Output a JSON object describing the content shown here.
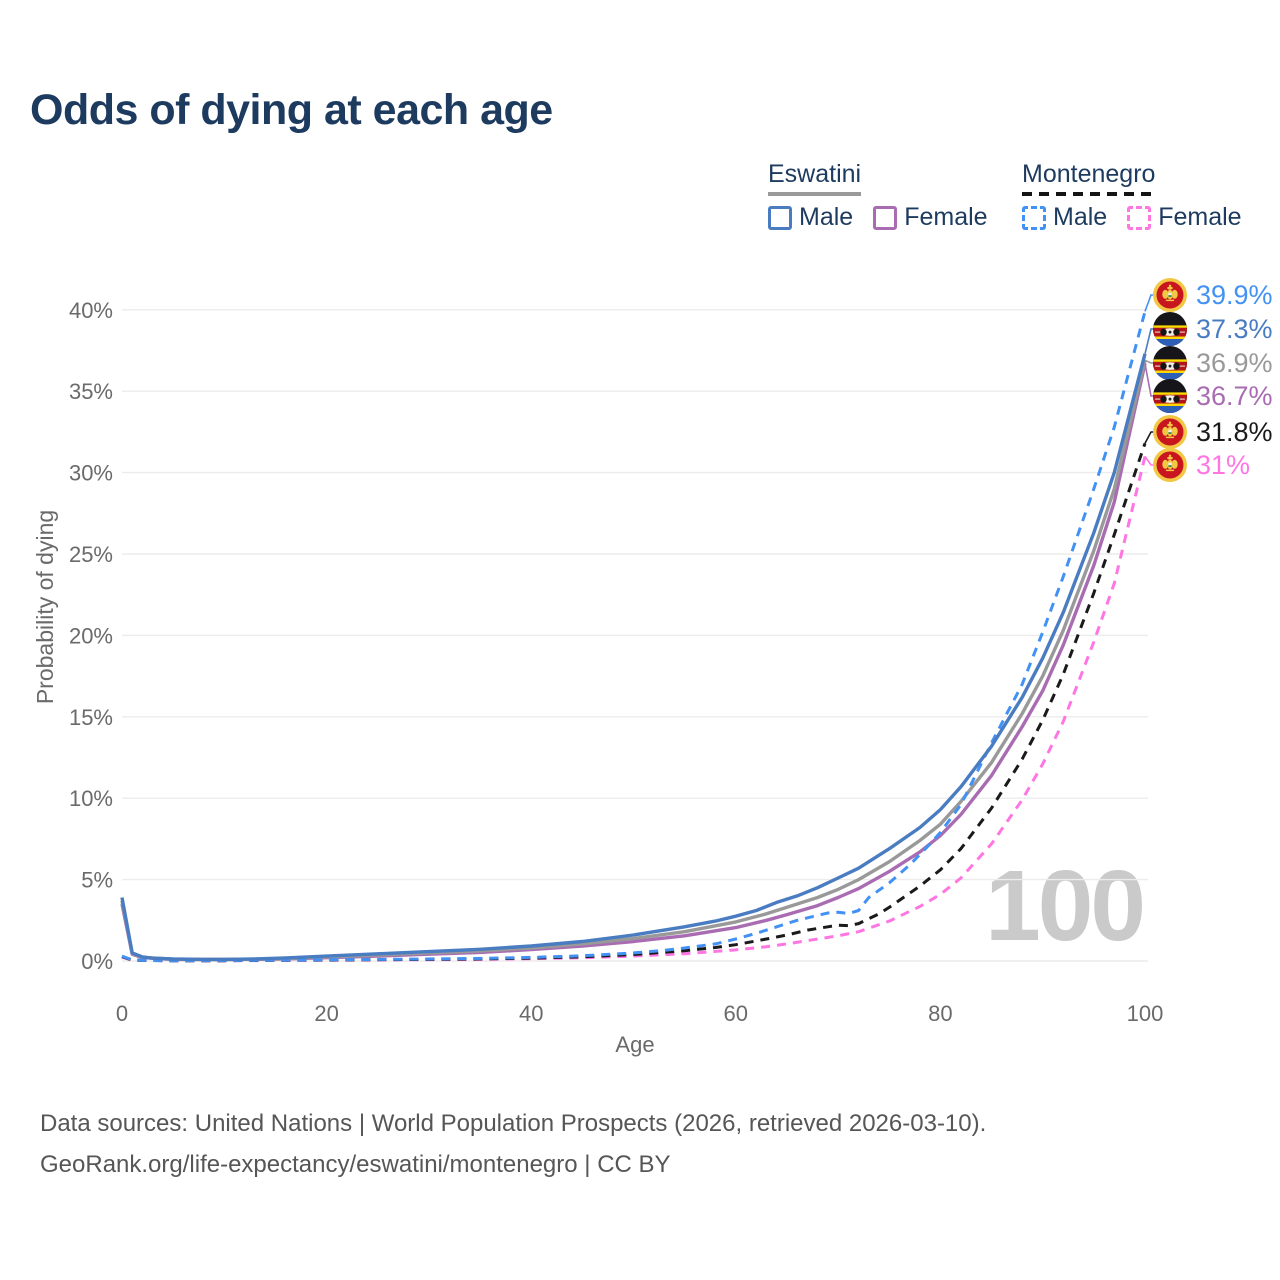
{
  "title": "Odds of dying at each age",
  "watermark": "100",
  "legend": {
    "groups": [
      {
        "country": "Eswatini",
        "line_style": "solid",
        "underline_color": "#9a9a9a",
        "items": [
          {
            "label": "Male",
            "color": "#4a7cc2",
            "dashed": false
          },
          {
            "label": "Female",
            "color": "#a96cb2",
            "dashed": false
          }
        ]
      },
      {
        "country": "Montenegro",
        "line_style": "dashed",
        "underline_color": "#141414",
        "items": [
          {
            "label": "Male",
            "color": "#4291f4",
            "dashed": true
          },
          {
            "label": "Female",
            "color": "#ff76e3",
            "dashed": true
          }
        ]
      }
    ]
  },
  "end_labels": [
    {
      "series": "montenegro-male",
      "value": "39.9%",
      "color": "#4291f4",
      "flag": "montenegro"
    },
    {
      "series": "eswatini-male",
      "value": "37.3%",
      "color": "#4a7cc2",
      "flag": "eswatini"
    },
    {
      "series": "eswatini-all",
      "value": "36.9%",
      "color": "#999999",
      "flag": "eswatini"
    },
    {
      "series": "eswatini-female",
      "value": "36.7%",
      "color": "#a96cb2",
      "flag": "eswatini"
    },
    {
      "series": "montenegro-all",
      "value": "31.8%",
      "color": "#1a1a1a",
      "flag": "montenegro"
    },
    {
      "series": "montenegro-female",
      "value": "31%",
      "color": "#ff76e3",
      "flag": "montenegro"
    }
  ],
  "footer": {
    "line1": "Data sources: United Nations | World Population Prospects (2026, retrieved 2026-03-10).",
    "line2": "GeoRank.org/life-expectancy/eswatini/montenegro | CC BY"
  },
  "chart_data": {
    "type": "line",
    "title": "Odds of dying at each age",
    "xlabel": "Age",
    "ylabel": "Probability of dying",
    "xlim": [
      0,
      100
    ],
    "ylim": [
      0,
      40
    ],
    "grid": true,
    "legend_position": "top-right",
    "x_ticks": [
      0,
      20,
      40,
      60,
      80,
      100
    ],
    "y_ticks": [
      {
        "label": "0%",
        "value": 0
      },
      {
        "label": "5%",
        "value": 5
      },
      {
        "label": "10%",
        "value": 10
      },
      {
        "label": "15%",
        "value": 15
      },
      {
        "label": "20%",
        "value": 20
      },
      {
        "label": "25%",
        "value": 25
      },
      {
        "label": "30%",
        "value": 30
      },
      {
        "label": "35%",
        "value": 35
      },
      {
        "label": "40%",
        "value": 40
      }
    ],
    "series": [
      {
        "id": "montenegro-female",
        "name": "Montenegro Female",
        "color": "#ff76e3",
        "dashed": true,
        "end_value_pct": 31.0,
        "points": [
          [
            0,
            0.24
          ],
          [
            1,
            0.05
          ],
          [
            5,
            0.02
          ],
          [
            10,
            0.02
          ],
          [
            15,
            0.03
          ],
          [
            20,
            0.05
          ],
          [
            25,
            0.07
          ],
          [
            30,
            0.08
          ],
          [
            35,
            0.1
          ],
          [
            40,
            0.14
          ],
          [
            45,
            0.2
          ],
          [
            50,
            0.3
          ],
          [
            55,
            0.45
          ],
          [
            60,
            0.68
          ],
          [
            63,
            0.88
          ],
          [
            65,
            1.05
          ],
          [
            68,
            1.35
          ],
          [
            70,
            1.55
          ],
          [
            72,
            1.8
          ],
          [
            75,
            2.45
          ],
          [
            78,
            3.35
          ],
          [
            80,
            4.1
          ],
          [
            82,
            5.1
          ],
          [
            85,
            7.2
          ],
          [
            88,
            9.9
          ],
          [
            90,
            12.1
          ],
          [
            92,
            14.7
          ],
          [
            95,
            19.6
          ],
          [
            97,
            23.2
          ],
          [
            100,
            31.0
          ]
        ]
      },
      {
        "id": "montenegro-all",
        "name": "Montenegro",
        "color": "#1a1a1a",
        "dashed": true,
        "end_value_pct": 31.8,
        "points": [
          [
            0,
            0.27
          ],
          [
            1,
            0.05
          ],
          [
            5,
            0.02
          ],
          [
            10,
            0.02
          ],
          [
            15,
            0.04
          ],
          [
            20,
            0.06
          ],
          [
            25,
            0.08
          ],
          [
            30,
            0.1
          ],
          [
            35,
            0.13
          ],
          [
            40,
            0.18
          ],
          [
            45,
            0.26
          ],
          [
            50,
            0.4
          ],
          [
            55,
            0.63
          ],
          [
            58,
            0.83
          ],
          [
            60,
            1.0
          ],
          [
            63,
            1.35
          ],
          [
            65,
            1.6
          ],
          [
            67,
            1.9
          ],
          [
            69,
            2.1
          ],
          [
            70,
            2.2
          ],
          [
            71,
            2.17
          ],
          [
            72,
            2.3
          ],
          [
            74,
            2.9
          ],
          [
            75,
            3.3
          ],
          [
            78,
            4.6
          ],
          [
            80,
            5.6
          ],
          [
            82,
            6.9
          ],
          [
            85,
            9.4
          ],
          [
            88,
            12.4
          ],
          [
            90,
            14.8
          ],
          [
            92,
            17.6
          ],
          [
            95,
            22.6
          ],
          [
            97,
            26.2
          ],
          [
            100,
            31.8
          ]
        ]
      },
      {
        "id": "eswatini-female",
        "name": "Eswatini Female",
        "color": "#a96cb2",
        "dashed": false,
        "end_value_pct": 36.7,
        "points": [
          [
            0,
            3.5
          ],
          [
            1,
            0.42
          ],
          [
            2,
            0.21
          ],
          [
            5,
            0.1
          ],
          [
            10,
            0.09
          ],
          [
            15,
            0.11
          ],
          [
            20,
            0.2
          ],
          [
            25,
            0.3
          ],
          [
            30,
            0.42
          ],
          [
            35,
            0.53
          ],
          [
            40,
            0.7
          ],
          [
            45,
            0.92
          ],
          [
            50,
            1.2
          ],
          [
            55,
            1.55
          ],
          [
            60,
            2.05
          ],
          [
            63,
            2.5
          ],
          [
            65,
            2.85
          ],
          [
            68,
            3.4
          ],
          [
            70,
            3.9
          ],
          [
            72,
            4.45
          ],
          [
            75,
            5.5
          ],
          [
            78,
            6.7
          ],
          [
            80,
            7.7
          ],
          [
            82,
            9.0
          ],
          [
            85,
            11.4
          ],
          [
            88,
            14.4
          ],
          [
            90,
            16.6
          ],
          [
            92,
            19.4
          ],
          [
            95,
            24.3
          ],
          [
            97,
            28.2
          ],
          [
            100,
            36.7
          ]
        ]
      },
      {
        "id": "eswatini-all",
        "name": "Eswatini",
        "color": "#999999",
        "dashed": false,
        "end_value_pct": 36.9,
        "points": [
          [
            0,
            3.7
          ],
          [
            1,
            0.45
          ],
          [
            2,
            0.23
          ],
          [
            5,
            0.11
          ],
          [
            10,
            0.09
          ],
          [
            15,
            0.13
          ],
          [
            20,
            0.25
          ],
          [
            25,
            0.37
          ],
          [
            30,
            0.5
          ],
          [
            35,
            0.62
          ],
          [
            40,
            0.8
          ],
          [
            45,
            1.05
          ],
          [
            50,
            1.38
          ],
          [
            55,
            1.8
          ],
          [
            60,
            2.4
          ],
          [
            63,
            2.9
          ],
          [
            65,
            3.3
          ],
          [
            68,
            3.9
          ],
          [
            70,
            4.4
          ],
          [
            72,
            5.0
          ],
          [
            75,
            6.1
          ],
          [
            78,
            7.4
          ],
          [
            80,
            8.4
          ],
          [
            82,
            9.8
          ],
          [
            85,
            12.2
          ],
          [
            88,
            15.2
          ],
          [
            90,
            17.5
          ],
          [
            92,
            20.3
          ],
          [
            95,
            25.2
          ],
          [
            97,
            29.0
          ],
          [
            100,
            36.9
          ]
        ]
      },
      {
        "id": "montenegro-male",
        "name": "Montenegro Male",
        "color": "#4291f4",
        "dashed": true,
        "end_value_pct": 39.9,
        "points": [
          [
            0,
            0.3
          ],
          [
            1,
            0.06
          ],
          [
            3,
            0.03
          ],
          [
            5,
            0.02
          ],
          [
            10,
            0.03
          ],
          [
            15,
            0.05
          ],
          [
            20,
            0.08
          ],
          [
            25,
            0.1
          ],
          [
            30,
            0.12
          ],
          [
            35,
            0.16
          ],
          [
            40,
            0.22
          ],
          [
            45,
            0.32
          ],
          [
            50,
            0.5
          ],
          [
            53,
            0.65
          ],
          [
            55,
            0.8
          ],
          [
            58,
            1.05
          ],
          [
            60,
            1.35
          ],
          [
            62,
            1.7
          ],
          [
            64,
            2.1
          ],
          [
            66,
            2.5
          ],
          [
            68,
            2.8
          ],
          [
            69,
            2.95
          ],
          [
            70,
            3.0
          ],
          [
            71,
            2.92
          ],
          [
            72,
            3.1
          ],
          [
            73,
            3.9
          ],
          [
            74,
            4.35
          ],
          [
            75,
            4.8
          ],
          [
            77,
            5.9
          ],
          [
            79,
            7.2
          ],
          [
            80,
            7.9
          ],
          [
            82,
            9.6
          ],
          [
            85,
            13.4
          ],
          [
            88,
            17.0
          ],
          [
            90,
            20.2
          ],
          [
            92,
            23.6
          ],
          [
            95,
            29.0
          ],
          [
            97,
            32.8
          ],
          [
            100,
            39.9
          ]
        ]
      },
      {
        "id": "eswatini-male",
        "name": "Eswatini Male",
        "color": "#4a7cc2",
        "dashed": false,
        "end_value_pct": 37.3,
        "points": [
          [
            0,
            3.9
          ],
          [
            1,
            0.5
          ],
          [
            2,
            0.25
          ],
          [
            3,
            0.17
          ],
          [
            5,
            0.12
          ],
          [
            8,
            0.1
          ],
          [
            10,
            0.1
          ],
          [
            13,
            0.13
          ],
          [
            16,
            0.19
          ],
          [
            20,
            0.3
          ],
          [
            25,
            0.44
          ],
          [
            30,
            0.58
          ],
          [
            35,
            0.72
          ],
          [
            40,
            0.92
          ],
          [
            45,
            1.2
          ],
          [
            50,
            1.6
          ],
          [
            55,
            2.1
          ],
          [
            58,
            2.45
          ],
          [
            60,
            2.75
          ],
          [
            62,
            3.1
          ],
          [
            64,
            3.6
          ],
          [
            66,
            4.0
          ],
          [
            68,
            4.5
          ],
          [
            70,
            5.1
          ],
          [
            72,
            5.7
          ],
          [
            75,
            6.9
          ],
          [
            78,
            8.2
          ],
          [
            80,
            9.3
          ],
          [
            82,
            10.7
          ],
          [
            85,
            13.2
          ],
          [
            88,
            16.2
          ],
          [
            90,
            18.6
          ],
          [
            92,
            21.4
          ],
          [
            95,
            26.3
          ],
          [
            97,
            30.0
          ],
          [
            100,
            37.3
          ]
        ]
      }
    ]
  }
}
